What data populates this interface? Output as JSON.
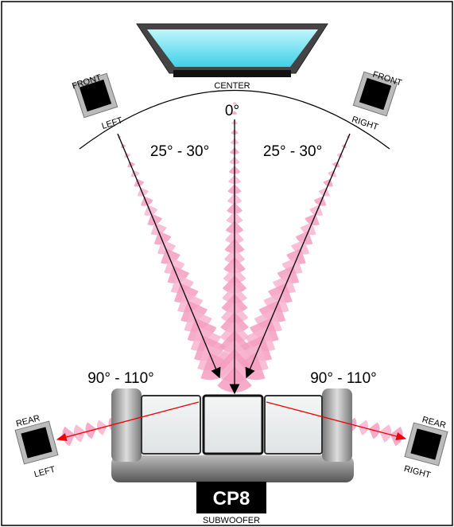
{
  "center": {
    "label": "CENTER",
    "angle": "0°"
  },
  "front_left": {
    "top": "FRONT",
    "bottom": "LEFT"
  },
  "front_right": {
    "top": "FRONT",
    "bottom": "RIGHT"
  },
  "front_angles": {
    "left": "25° - 30°",
    "right": "25° - 30°"
  },
  "rear_angles": {
    "left": "90° - 110°",
    "right": "90° - 110°"
  },
  "rear_left": {
    "top": "REAR",
    "bottom": "LEFT"
  },
  "rear_right": {
    "top": "REAR",
    "bottom": "RIGHT"
  },
  "subwoofer": {
    "model": "CP8",
    "label": "SUBWOOFER"
  }
}
